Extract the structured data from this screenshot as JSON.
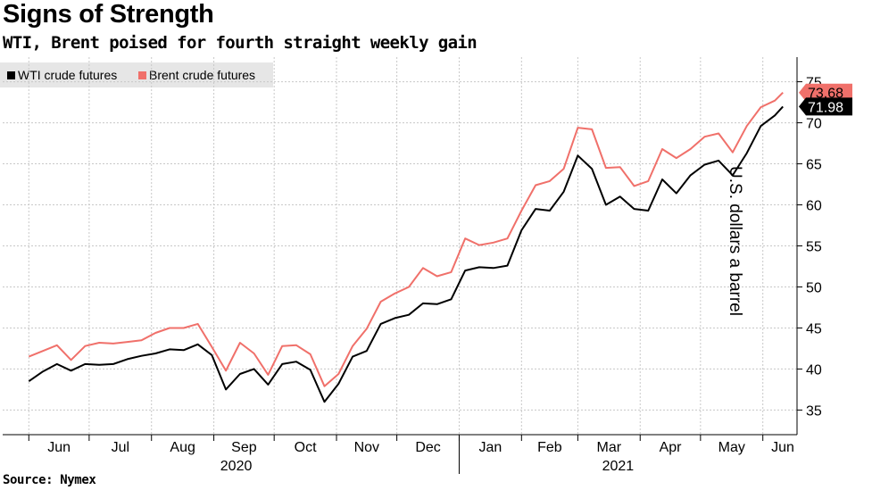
{
  "title": "Signs of Strength",
  "subtitle": "WTI, Brent poised for fourth straight weekly gain",
  "source": "Source: Nymex",
  "colors": {
    "wti": "#000000",
    "brent": "#f0706a",
    "grid": "#c8c8c8",
    "legend_bg": "#e6e6e6"
  },
  "chart_data": {
    "type": "line",
    "title": "Signs of Strength",
    "subtitle": "WTI, Brent poised for fourth straight weekly gain",
    "xlabel": "",
    "ylabel": "U.S. dollars a barrel",
    "ylim": [
      32,
      78
    ],
    "y_ticks": [
      35,
      40,
      45,
      50,
      55,
      60,
      65,
      70,
      75
    ],
    "x_tick_labels": [
      "Jun",
      "Jul",
      "Aug",
      "Sep",
      "Oct",
      "Nov",
      "Dec",
      "Jan",
      "Feb",
      "Mar",
      "Apr",
      "May",
      "Jun"
    ],
    "x_year_labels": [
      "2020",
      "2021"
    ],
    "grid": true,
    "legend_position": "top-left",
    "x": [
      "2020-06-01",
      "2020-06-08",
      "2020-06-15",
      "2020-06-22",
      "2020-06-29",
      "2020-07-06",
      "2020-07-13",
      "2020-07-20",
      "2020-07-27",
      "2020-08-03",
      "2020-08-10",
      "2020-08-17",
      "2020-08-24",
      "2020-08-31",
      "2020-09-07",
      "2020-09-14",
      "2020-09-21",
      "2020-09-28",
      "2020-10-05",
      "2020-10-12",
      "2020-10-19",
      "2020-10-26",
      "2020-11-02",
      "2020-11-09",
      "2020-11-16",
      "2020-11-23",
      "2020-11-30",
      "2020-12-07",
      "2020-12-14",
      "2020-12-21",
      "2020-12-28",
      "2021-01-04",
      "2021-01-11",
      "2021-01-18",
      "2021-01-25",
      "2021-02-01",
      "2021-02-08",
      "2021-02-15",
      "2021-02-22",
      "2021-03-01",
      "2021-03-08",
      "2021-03-15",
      "2021-03-22",
      "2021-03-29",
      "2021-04-05",
      "2021-04-12",
      "2021-04-19",
      "2021-04-26",
      "2021-05-03",
      "2021-05-10",
      "2021-05-17",
      "2021-05-24",
      "2021-05-31",
      "2021-06-07",
      "2021-06-11"
    ],
    "series": [
      {
        "name": "WTI crude futures",
        "color": "#000000",
        "end_label": "71.98",
        "values": [
          38.5,
          39.7,
          40.6,
          39.8,
          40.6,
          40.5,
          40.6,
          41.2,
          41.6,
          41.9,
          42.4,
          42.3,
          43.0,
          41.7,
          37.5,
          39.4,
          40.0,
          38.1,
          40.6,
          40.9,
          39.9,
          36.0,
          38.2,
          41.5,
          42.2,
          45.5,
          46.2,
          46.6,
          48.0,
          47.9,
          48.5,
          52.0,
          52.4,
          52.3,
          52.6,
          56.9,
          59.5,
          59.3,
          61.6,
          66.0,
          64.4,
          60.0,
          61.0,
          59.5,
          59.3,
          63.1,
          61.4,
          63.6,
          64.9,
          65.4,
          63.6,
          66.3,
          69.6,
          70.9,
          71.98
        ]
      },
      {
        "name": "Brent crude futures",
        "color": "#f0706a",
        "end_label": "73.68",
        "values": [
          41.5,
          42.2,
          42.9,
          41.1,
          42.8,
          43.2,
          43.1,
          43.3,
          43.5,
          44.4,
          45.0,
          45.0,
          45.5,
          42.7,
          39.8,
          43.2,
          41.9,
          39.3,
          42.8,
          42.9,
          41.8,
          37.9,
          39.4,
          42.8,
          44.9,
          48.2,
          49.2,
          50.0,
          52.3,
          51.3,
          51.8,
          55.9,
          55.1,
          55.4,
          55.9,
          59.3,
          62.4,
          62.9,
          64.4,
          69.4,
          69.2,
          64.5,
          64.6,
          62.3,
          62.9,
          66.8,
          65.7,
          66.8,
          68.3,
          68.7,
          66.4,
          69.6,
          71.9,
          72.7,
          73.68
        ]
      }
    ]
  }
}
